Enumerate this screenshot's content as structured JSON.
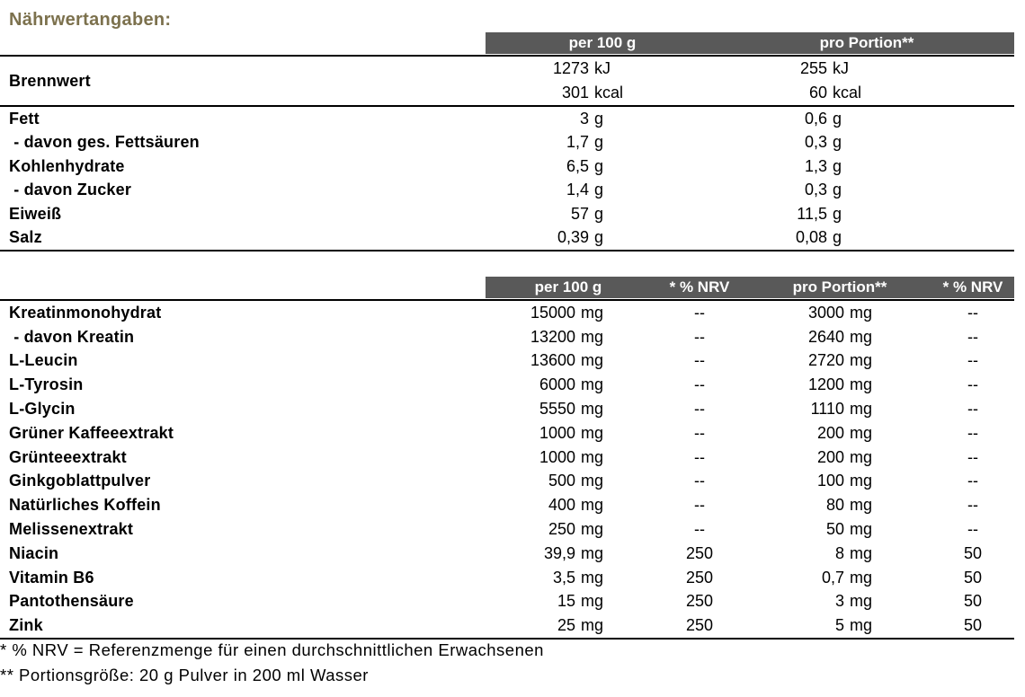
{
  "title": "Nährwertangaben:",
  "colors": {
    "title_text": "#7C714D",
    "header_bg": "#595959",
    "header_text": "#FFFFFF",
    "body_text": "#000000",
    "rule": "#000000",
    "background": "#FFFFFF"
  },
  "table1": {
    "headers": {
      "per100": "per 100 g",
      "portion": "pro Portion**"
    },
    "energy": {
      "label": "Brennwert",
      "rows": [
        {
          "per100": {
            "num": "1273",
            "unit": "kJ"
          },
          "portion": {
            "num": "255",
            "unit": "kJ"
          }
        },
        {
          "per100": {
            "num": "301",
            "unit": "kcal"
          },
          "portion": {
            "num": "60",
            "unit": "kcal"
          }
        }
      ]
    },
    "rows": [
      {
        "label": "Fett",
        "per100": {
          "num": "3",
          "unit": "g"
        },
        "portion": {
          "num": "0,6",
          "unit": "g"
        }
      },
      {
        "label": " - davon ges. Fettsäuren",
        "per100": {
          "num": "1,7",
          "unit": "g"
        },
        "portion": {
          "num": "0,3",
          "unit": "g"
        }
      },
      {
        "label": "Kohlenhydrate",
        "per100": {
          "num": "6,5",
          "unit": "g"
        },
        "portion": {
          "num": "1,3",
          "unit": "g"
        }
      },
      {
        "label": " - davon Zucker",
        "per100": {
          "num": "1,4",
          "unit": "g"
        },
        "portion": {
          "num": "0,3",
          "unit": "g"
        }
      },
      {
        "label": "Eiweiß",
        "per100": {
          "num": "57",
          "unit": "g"
        },
        "portion": {
          "num": "11,5",
          "unit": "g"
        }
      },
      {
        "label": "Salz",
        "per100": {
          "num": "0,39",
          "unit": "g"
        },
        "portion": {
          "num": "0,08",
          "unit": "g"
        }
      }
    ]
  },
  "table2": {
    "headers": {
      "per100": "per 100 g",
      "nrv1": "* % NRV",
      "portion": "pro Portion**",
      "nrv2": "* % NRV"
    },
    "rows": [
      {
        "label": "Kreatinmonohydrat",
        "per100": {
          "num": "15000",
          "unit": "mg"
        },
        "nrv1": "--",
        "portion": {
          "num": "3000",
          "unit": "mg"
        },
        "nrv2": "--"
      },
      {
        "label": " - davon Kreatin",
        "per100": {
          "num": "13200",
          "unit": "mg"
        },
        "nrv1": "--",
        "portion": {
          "num": "2640",
          "unit": "mg"
        },
        "nrv2": "--"
      },
      {
        "label": "L-Leucin",
        "per100": {
          "num": "13600",
          "unit": "mg"
        },
        "nrv1": "--",
        "portion": {
          "num": "2720",
          "unit": "mg"
        },
        "nrv2": "--"
      },
      {
        "label": "L-Tyrosin",
        "per100": {
          "num": "6000",
          "unit": "mg"
        },
        "nrv1": "--",
        "portion": {
          "num": "1200",
          "unit": "mg"
        },
        "nrv2": "--"
      },
      {
        "label": "L-Glycin",
        "per100": {
          "num": "5550",
          "unit": "mg"
        },
        "nrv1": "--",
        "portion": {
          "num": "1110",
          "unit": "mg"
        },
        "nrv2": "--"
      },
      {
        "label": "Grüner Kaffeeextrakt",
        "per100": {
          "num": "1000",
          "unit": "mg"
        },
        "nrv1": "--",
        "portion": {
          "num": "200",
          "unit": "mg"
        },
        "nrv2": "--"
      },
      {
        "label": "Grünteeextrakt",
        "per100": {
          "num": "1000",
          "unit": "mg"
        },
        "nrv1": "--",
        "portion": {
          "num": "200",
          "unit": "mg"
        },
        "nrv2": "--"
      },
      {
        "label": "Ginkgoblattpulver",
        "per100": {
          "num": "500",
          "unit": "mg"
        },
        "nrv1": "--",
        "portion": {
          "num": "100",
          "unit": "mg"
        },
        "nrv2": "--"
      },
      {
        "label": "Natürliches Koffein",
        "per100": {
          "num": "400",
          "unit": "mg"
        },
        "nrv1": "--",
        "portion": {
          "num": "80",
          "unit": "mg"
        },
        "nrv2": "--"
      },
      {
        "label": "Melissenextrakt",
        "per100": {
          "num": "250",
          "unit": "mg"
        },
        "nrv1": "--",
        "portion": {
          "num": "50",
          "unit": "mg"
        },
        "nrv2": "--"
      },
      {
        "label": "Niacin",
        "per100": {
          "num": "39,9",
          "unit": "mg"
        },
        "nrv1": "250",
        "portion": {
          "num": "8",
          "unit": "mg"
        },
        "nrv2": "50"
      },
      {
        "label": "Vitamin B6",
        "per100": {
          "num": "3,5",
          "unit": "mg"
        },
        "nrv1": "250",
        "portion": {
          "num": "0,7",
          "unit": "mg"
        },
        "nrv2": "50"
      },
      {
        "label": "Pantothensäure",
        "per100": {
          "num": "15",
          "unit": "mg"
        },
        "nrv1": "250",
        "portion": {
          "num": "3",
          "unit": "mg"
        },
        "nrv2": "50"
      },
      {
        "label": "Zink",
        "per100": {
          "num": "25",
          "unit": "mg"
        },
        "nrv1": "250",
        "portion": {
          "num": "5",
          "unit": "mg"
        },
        "nrv2": "50"
      }
    ]
  },
  "footnotes": {
    "nrv": "* % NRV = Referenzmenge für einen durchschnittlichen Erwachsenen",
    "portion": "** Portionsgröße: 20 g Pulver in 200 ml Wasser"
  }
}
